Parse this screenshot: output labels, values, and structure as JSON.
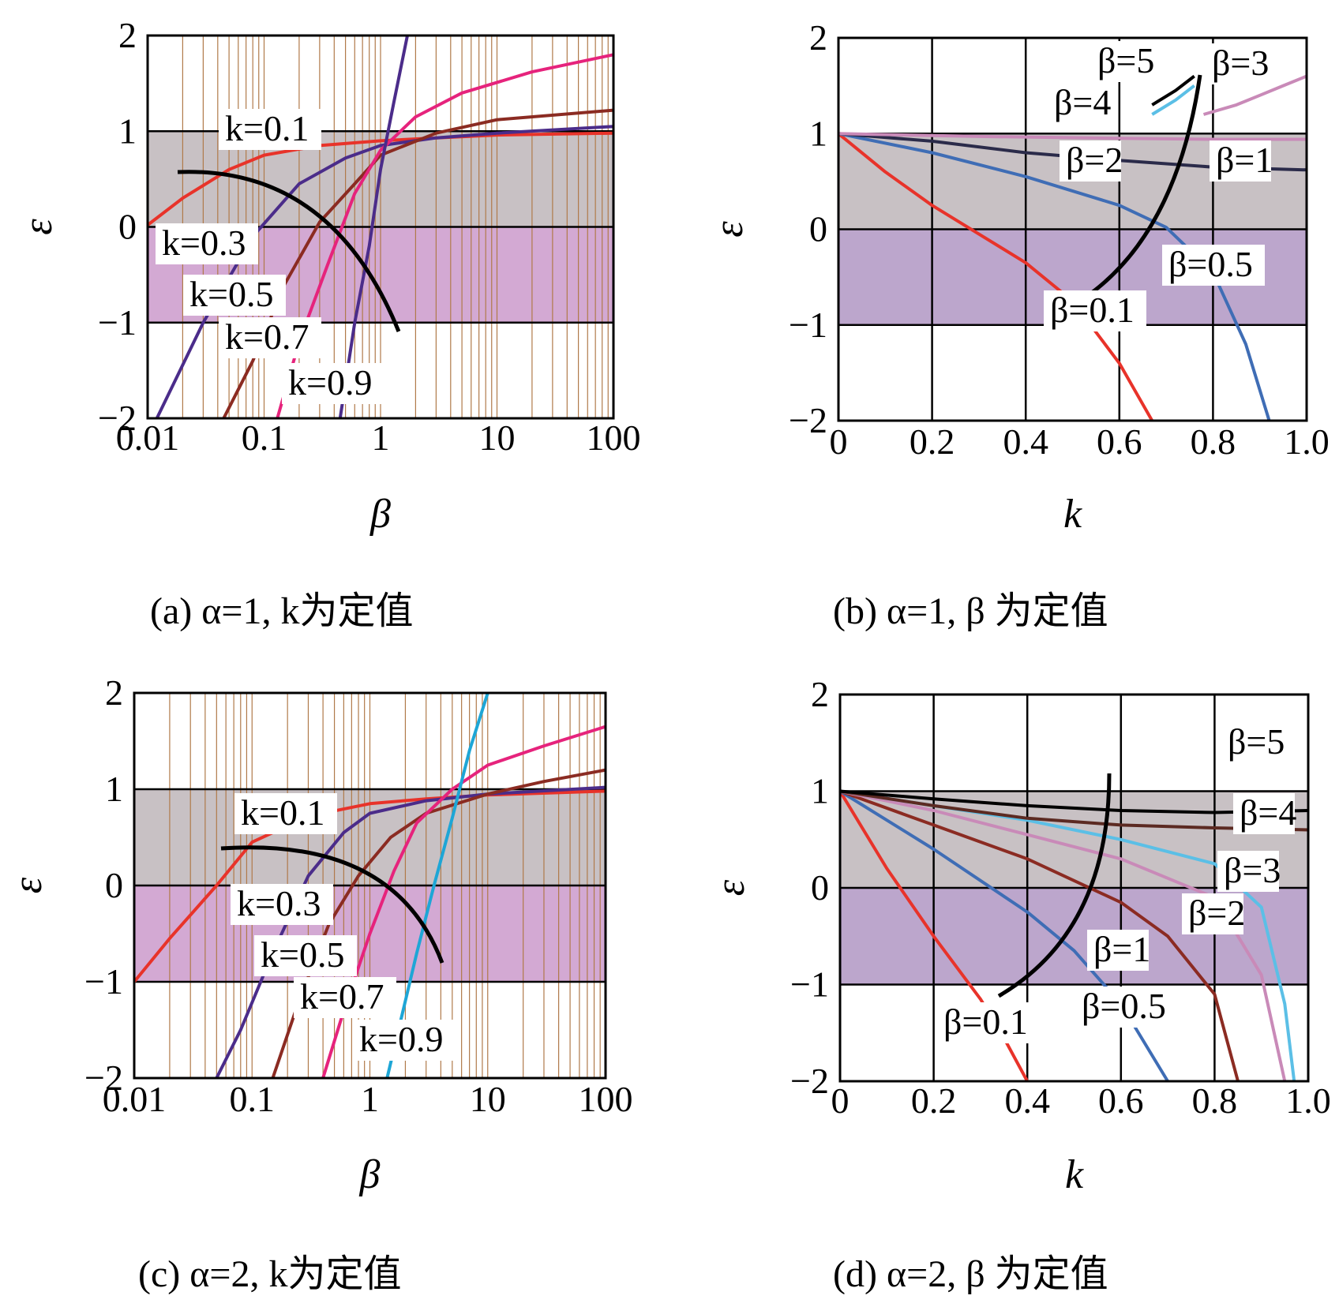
{
  "chart_data": [
    {
      "type": "line",
      "caption": "(a) α=1, k为定值",
      "xlabel": "β",
      "ylabel": "ε",
      "xscale": "log",
      "xlim": [
        0.01,
        100
      ],
      "ylim": [
        -2,
        2
      ],
      "xticks": [
        "0.01",
        "0.1",
        "1",
        "10",
        "100"
      ],
      "yticks": [
        "2",
        "1",
        "0",
        "−1",
        "−2"
      ],
      "arrow": "decreasing k direction",
      "series": [
        {
          "name": "k=0.1",
          "color": "#e8332a",
          "x": [
            0.01,
            0.02,
            0.05,
            0.1,
            0.3,
            1,
            3,
            10,
            100
          ],
          "y": [
            0.02,
            0.3,
            0.6,
            0.75,
            0.85,
            0.9,
            0.93,
            0.96,
            0.98
          ]
        },
        {
          "name": "k=0.3",
          "color": "#4b2c8a",
          "x": [
            0.012,
            0.03,
            0.08,
            0.2,
            0.5,
            1,
            3,
            10,
            100
          ],
          "y": [
            -2,
            -1,
            -0.1,
            0.45,
            0.72,
            0.85,
            0.93,
            0.98,
            1.05
          ]
        },
        {
          "name": "k=0.5",
          "color": "#8b2b22",
          "x": [
            0.045,
            0.08,
            0.15,
            0.3,
            0.6,
            1,
            3,
            10,
            100
          ],
          "y": [
            -2,
            -1.4,
            -0.6,
            0.05,
            0.45,
            0.75,
            0.98,
            1.12,
            1.22
          ]
        },
        {
          "name": "k=0.7",
          "color": "#e6237c",
          "x": [
            0.13,
            0.2,
            0.35,
            0.6,
            1,
            2,
            5,
            20,
            100
          ],
          "y": [
            -2,
            -1.2,
            -0.4,
            0.35,
            0.8,
            1.15,
            1.4,
            1.62,
            1.8
          ]
        },
        {
          "name": "k=0.9",
          "color": "#4b2c8a",
          "x": [
            0.45,
            0.6,
            0.8,
            1,
            1.3,
            1.7
          ],
          "y": [
            -2,
            -1,
            -0.2,
            0.6,
            1.3,
            2
          ]
        }
      ]
    },
    {
      "type": "line",
      "caption": "(b) α=1, β 为定值",
      "xlabel": "k",
      "ylabel": "ε",
      "xlim": [
        0,
        1.0
      ],
      "ylim": [
        -2,
        2
      ],
      "xticks": [
        "0",
        "0.2",
        "0.4",
        "0.6",
        "0.8",
        "1.0"
      ],
      "yticks": [
        "2",
        "1",
        "0",
        "−1",
        "−2"
      ],
      "arrow": "increasing β direction",
      "series": [
        {
          "name": "β=0.1",
          "color": "#e8332a",
          "x": [
            0,
            0.1,
            0.2,
            0.3,
            0.4,
            0.5,
            0.6,
            0.67
          ],
          "y": [
            1,
            0.6,
            0.25,
            -0.05,
            -0.35,
            -0.75,
            -1.4,
            -2
          ]
        },
        {
          "name": "β=0.5",
          "color": "#3f6db5",
          "x": [
            0,
            0.2,
            0.4,
            0.6,
            0.7,
            0.8,
            0.87,
            0.92
          ],
          "y": [
            1,
            0.8,
            0.55,
            0.25,
            0.02,
            -0.45,
            -1.2,
            -2
          ]
        },
        {
          "name": "β=1",
          "color": "#2b2b4a",
          "x": [
            0,
            0.2,
            0.4,
            0.6,
            0.8,
            1.0
          ],
          "y": [
            1,
            0.92,
            0.8,
            0.72,
            0.65,
            0.62
          ]
        },
        {
          "name": "β=2",
          "color": "#c98ab8",
          "x": [
            0,
            0.3,
            0.6,
            0.8,
            1.0
          ],
          "y": [
            1,
            0.97,
            0.95,
            0.94,
            0.94
          ]
        },
        {
          "name": "β=3",
          "color": "#c98ab8",
          "x": [
            0.78,
            0.85,
            0.9,
            0.95,
            1.0
          ],
          "y": [
            1.2,
            1.3,
            1.4,
            1.5,
            1.6
          ]
        },
        {
          "name": "β=4",
          "color": "#5bbfe6",
          "x": [
            0.67,
            0.72,
            0.76
          ],
          "y": [
            1.2,
            1.35,
            1.5
          ]
        },
        {
          "name": "β=5",
          "color": "#000000",
          "x": [
            0.67,
            0.72,
            0.76
          ],
          "y": [
            1.3,
            1.45,
            1.6
          ]
        }
      ]
    },
    {
      "type": "line",
      "caption": "(c) α=2, k为定值",
      "xlabel": "β",
      "ylabel": "ε",
      "xscale": "log",
      "xlim": [
        0.01,
        100
      ],
      "ylim": [
        -2,
        2
      ],
      "xticks": [
        "0.01",
        "0.1",
        "1",
        "10",
        "100"
      ],
      "yticks": [
        "2",
        "1",
        "0",
        "−1",
        "−2"
      ],
      "arrow": "decreasing k direction",
      "series": [
        {
          "name": "k=0.1",
          "color": "#e8332a",
          "x": [
            0.01,
            0.02,
            0.05,
            0.1,
            0.3,
            1,
            3,
            10,
            100
          ],
          "y": [
            -1,
            -0.55,
            0,
            0.45,
            0.72,
            0.85,
            0.9,
            0.94,
            0.98
          ]
        },
        {
          "name": "k=0.3",
          "color": "#4b2c8a",
          "x": [
            0.05,
            0.08,
            0.15,
            0.3,
            0.6,
            1,
            3,
            10,
            100
          ],
          "y": [
            -2,
            -1.5,
            -0.7,
            0.1,
            0.55,
            0.75,
            0.88,
            0.95,
            1.02
          ]
        },
        {
          "name": "k=0.5",
          "color": "#8b2b22",
          "x": [
            0.15,
            0.25,
            0.45,
            0.8,
            1.5,
            3,
            10,
            30,
            100
          ],
          "y": [
            -2,
            -1.2,
            -0.4,
            0.1,
            0.5,
            0.75,
            0.95,
            1.08,
            1.2
          ]
        },
        {
          "name": "k=0.7",
          "color": "#e6237c",
          "x": [
            0.4,
            0.6,
            1,
            1.6,
            2.5,
            5,
            10,
            30,
            100
          ],
          "y": [
            -2,
            -1.3,
            -0.5,
            0.15,
            0.65,
            1,
            1.25,
            1.45,
            1.65
          ]
        },
        {
          "name": "k=0.9",
          "color": "#1ea6d6",
          "x": [
            1.4,
            2,
            2.5,
            3.5,
            5,
            7,
            10
          ],
          "y": [
            -2,
            -1.2,
            -0.7,
            0,
            0.7,
            1.4,
            2
          ]
        }
      ]
    },
    {
      "type": "line",
      "caption": "(d) α=2, β 为定值",
      "xlabel": "k",
      "ylabel": "ε",
      "xlim": [
        0,
        1.0
      ],
      "ylim": [
        -2,
        2
      ],
      "xticks": [
        "0",
        "0.2",
        "0.4",
        "0.6",
        "0.8",
        "1.0"
      ],
      "yticks": [
        "2",
        "1",
        "0",
        "−1",
        "−2"
      ],
      "arrow": "increasing β direction",
      "series": [
        {
          "name": "β=0.1",
          "color": "#e8332a",
          "x": [
            0,
            0.1,
            0.2,
            0.3,
            0.35,
            0.4
          ],
          "y": [
            1,
            0.2,
            -0.5,
            -1.15,
            -1.55,
            -2
          ]
        },
        {
          "name": "β=0.5",
          "color": "#3f6db5",
          "x": [
            0,
            0.2,
            0.4,
            0.5,
            0.6,
            0.7
          ],
          "y": [
            1,
            0.4,
            -0.25,
            -0.65,
            -1.2,
            -2
          ]
        },
        {
          "name": "β=1",
          "color": "#8b2b22",
          "x": [
            0,
            0.2,
            0.4,
            0.6,
            0.7,
            0.8,
            0.85
          ],
          "y": [
            1,
            0.65,
            0.3,
            -0.15,
            -0.5,
            -1.1,
            -2
          ]
        },
        {
          "name": "β=2",
          "color": "#c98ab8",
          "x": [
            0,
            0.2,
            0.4,
            0.6,
            0.8,
            0.9,
            0.95
          ],
          "y": [
            1,
            0.8,
            0.55,
            0.3,
            -0.1,
            -0.9,
            -2
          ]
        },
        {
          "name": "β=3",
          "color": "#5bbfe6",
          "x": [
            0,
            0.2,
            0.4,
            0.6,
            0.8,
            0.9,
            0.95,
            0.97
          ],
          "y": [
            1,
            0.85,
            0.7,
            0.5,
            0.25,
            -0.2,
            -1.2,
            -2
          ]
        },
        {
          "name": "β=4",
          "color": "#5c2a22",
          "x": [
            0,
            0.2,
            0.4,
            0.6,
            0.8,
            1.0
          ],
          "y": [
            1,
            0.85,
            0.72,
            0.65,
            0.62,
            0.6
          ]
        },
        {
          "name": "β=5",
          "color": "#000000",
          "x": [
            0,
            0.2,
            0.4,
            0.6,
            0.8,
            1.0
          ],
          "y": [
            1,
            0.92,
            0.85,
            0.8,
            0.78,
            0.8
          ]
        }
      ]
    }
  ]
}
